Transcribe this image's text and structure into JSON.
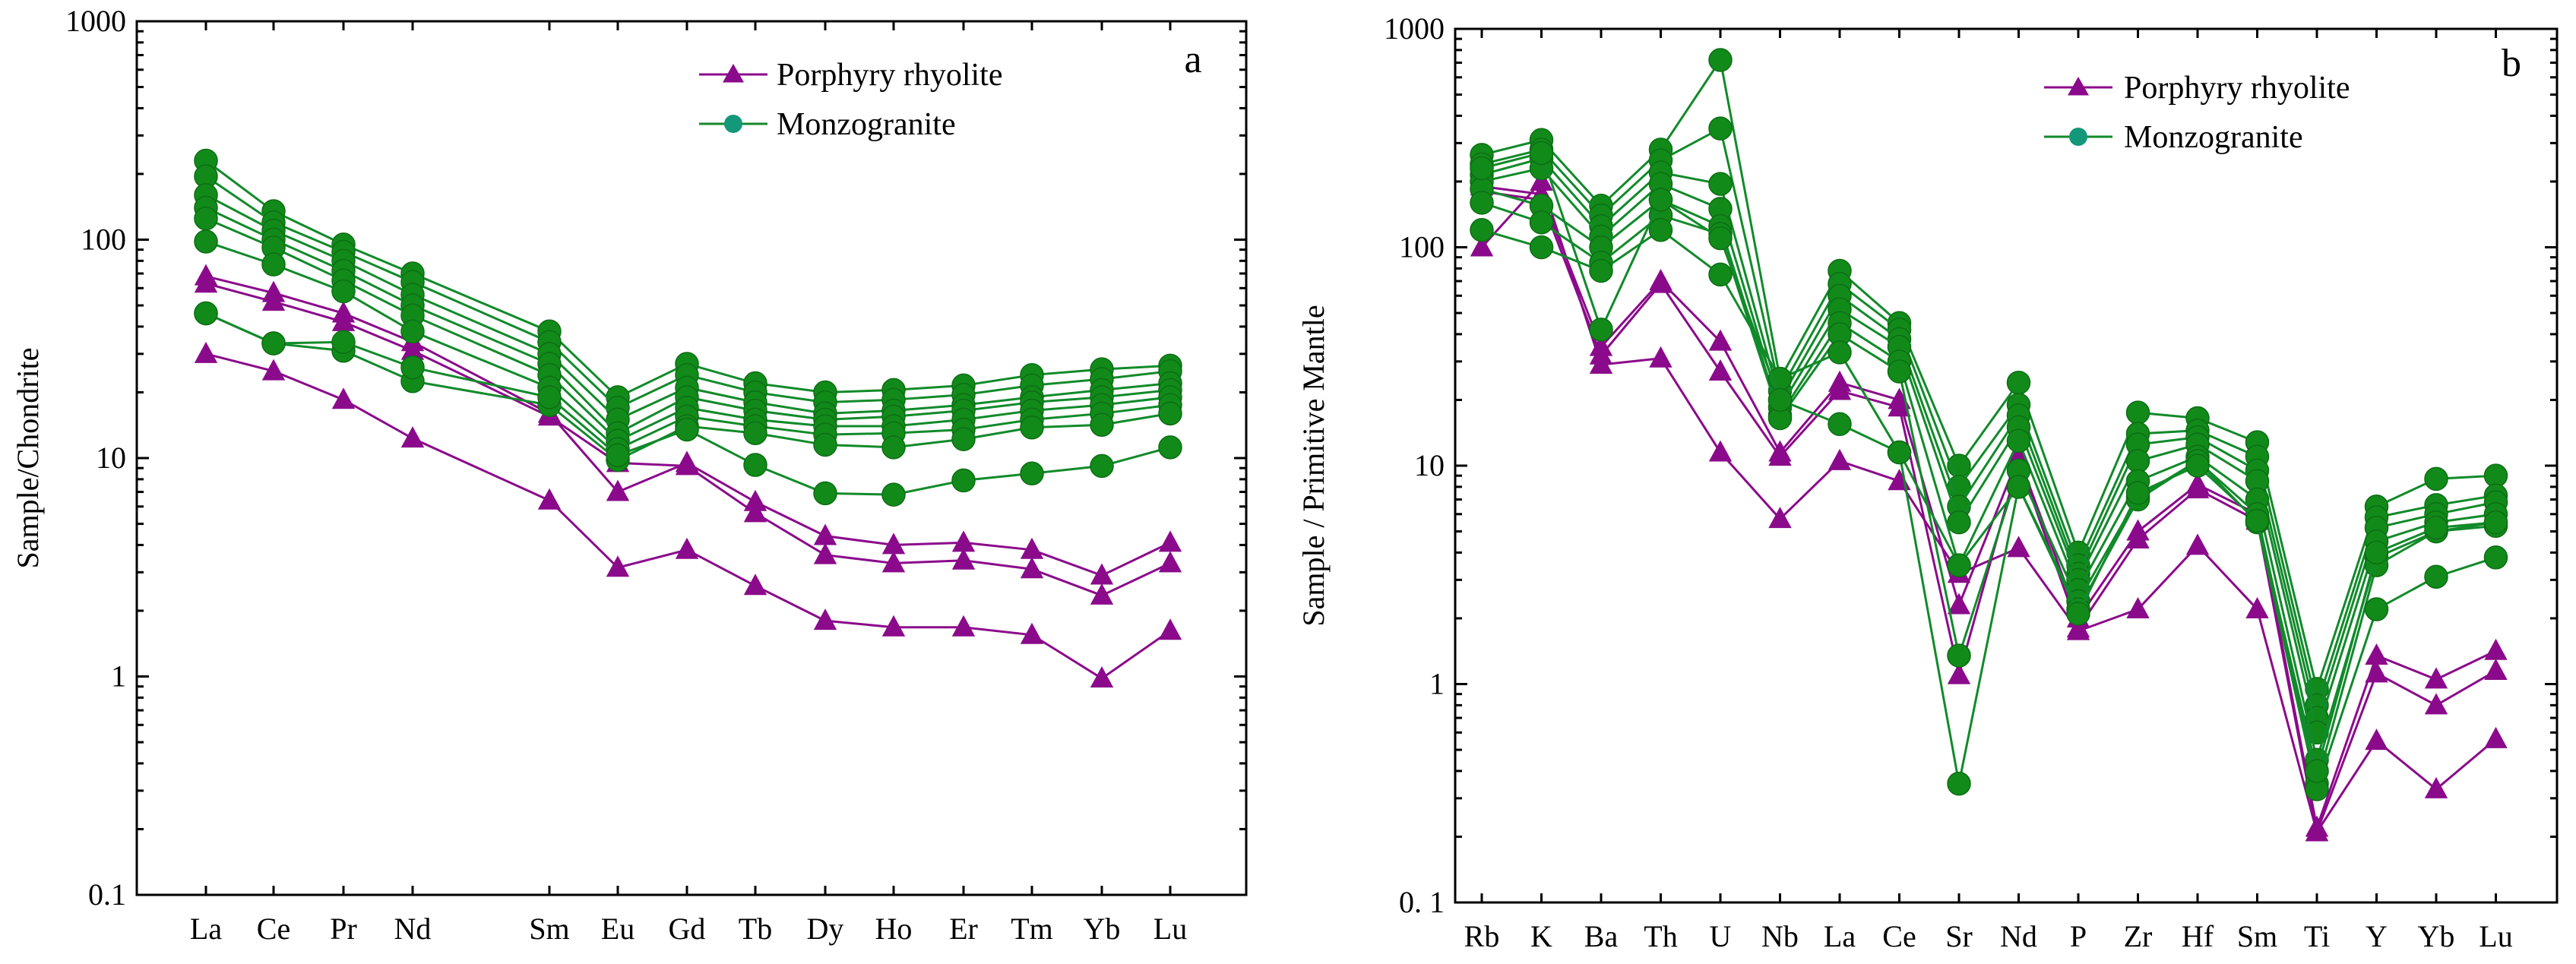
{
  "colors": {
    "porphyry": "#8b0a8b",
    "monzo_line": "#118a2a",
    "monzo_marker": "#118a1a",
    "legend_monzo_marker": "#13987a"
  },
  "chart_data": [
    {
      "type": "line",
      "panel_label": "a",
      "ylabel": "Sample/Chondrite",
      "xlabel": "",
      "yscale": "log",
      "ylim": [
        0.1,
        1000
      ],
      "ytick_labels": [
        "0.1",
        "1",
        "10",
        "100",
        "1000"
      ],
      "categories": [
        "La",
        "Ce",
        "Pr",
        "Nd",
        "Sm",
        "Eu",
        "Gd",
        "Tb",
        "Dy",
        "Ho",
        "Er",
        "Tm",
        "Yb",
        "Lu"
      ],
      "legend": [
        "Porphyry rhyolite",
        "Monzogranite"
      ],
      "series": [
        {
          "name": "Porphyry rhyolite",
          "values": [
            68,
            57,
            46,
            34,
            16,
            7,
            9.5,
            6.3,
            4.4,
            4.0,
            4.1,
            3.8,
            2.9,
            4.1
          ]
        },
        {
          "name": "Porphyry rhyolite",
          "values": [
            63,
            52,
            42,
            31,
            15.5,
            9.5,
            9.2,
            5.6,
            3.6,
            3.3,
            3.4,
            3.1,
            2.35,
            3.3
          ]
        },
        {
          "name": "Porphyry rhyolite",
          "values": [
            30,
            25,
            18.5,
            12.3,
            6.4,
            3.15,
            3.8,
            2.6,
            1.8,
            1.68,
            1.68,
            1.55,
            0.98,
            1.62
          ]
        },
        {
          "name": "Monzogranite",
          "values": [
            230,
            135,
            95,
            70,
            38,
            19,
            27,
            22,
            20,
            20.5,
            21.5,
            24,
            25.5,
            26.5
          ]
        },
        {
          "name": "Monzogranite",
          "values": [
            195,
            120,
            88,
            64,
            34,
            17,
            24,
            20,
            18,
            18.5,
            19.5,
            21.5,
            23,
            25
          ]
        },
        {
          "name": "Monzogranite",
          "values": [
            160,
            110,
            80,
            56,
            30,
            15,
            21,
            18,
            16,
            16.5,
            17.5,
            19,
            20.5,
            22
          ]
        },
        {
          "name": "Monzogranite",
          "values": [
            140,
            100,
            72,
            50,
            27,
            13,
            19,
            16.5,
            15,
            15.5,
            16.5,
            18,
            19,
            20.5
          ]
        },
        {
          "name": "Monzogranite",
          "values": [
            125,
            92,
            65,
            45,
            24,
            12,
            17,
            15,
            14,
            14,
            15,
            16.5,
            17.5,
            19
          ]
        },
        {
          "name": "Monzogranite",
          "values": [
            98,
            77,
            58,
            38,
            21,
            11,
            15.5,
            14,
            12.8,
            13,
            13.5,
            15,
            16,
            17.5
          ]
        },
        {
          "name": "Monzogranite",
          "values": [
            46,
            33.5,
            31,
            22.5,
            17.5,
            9.8,
            14,
            13,
            11.5,
            11.2,
            12.2,
            13.8,
            14.2,
            16
          ]
        },
        {
          "name": "Monzogranite",
          "values": [
            46,
            33.5,
            34,
            26,
            19,
            10.3,
            13.5,
            9.3,
            6.9,
            6.8,
            7.9,
            8.5,
            9.2,
            11.2
          ]
        }
      ]
    },
    {
      "type": "line",
      "panel_label": "b",
      "ylabel": "Sample / Primitive  Mantle",
      "xlabel": "",
      "yscale": "log",
      "ylim": [
        0.1,
        1000
      ],
      "ytick_labels": [
        "0. 1",
        "1",
        "10",
        "100",
        "1000"
      ],
      "categories": [
        "Rb",
        "K",
        "Ba",
        "Th",
        "U",
        "Nb",
        "La",
        "Ce",
        "Sr",
        "Nd",
        "P",
        "Zr",
        "Hf",
        "Sm",
        "Ti",
        "Y",
        "Yb",
        "Lu"
      ],
      "legend": [
        "Porphyry rhyolite",
        "Monzogranite"
      ],
      "series": [
        {
          "name": "Porphyry rhyolite",
          "values": [
            190,
            175,
            35,
            70,
            37,
            11.5,
            24,
            20,
            2.3,
            11,
            2.0,
            5.0,
            8.2,
            6.0,
            0.22,
            1.35,
            1.05,
            1.42
          ]
        },
        {
          "name": "Porphyry rhyolite",
          "values": [
            180,
            165,
            32,
            68,
            27,
            11.0,
            22,
            18.5,
            1.1,
            10.5,
            1.8,
            4.6,
            7.8,
            5.6,
            0.21,
            1.12,
            0.8,
            1.15
          ]
        },
        {
          "name": "Porphyry rhyolite",
          "values": [
            100,
            200,
            29,
            31,
            11.5,
            5.7,
            10.5,
            8.5,
            3.2,
            4.2,
            1.75,
            2.2,
            4.3,
            2.2,
            0.21,
            0.55,
            0.33,
            0.56
          ]
        },
        {
          "name": "Monzogranite",
          "values": [
            265,
            310,
            155,
            280,
            720,
            25,
            78,
            45,
            10,
            24,
            4.0,
            17.5,
            16.5,
            12.8,
            0.95,
            6.5,
            8.7,
            9.0
          ]
        },
        {
          "name": "Monzogranite",
          "values": [
            240,
            280,
            140,
            250,
            350,
            22,
            68,
            42,
            8.0,
            19,
            3.5,
            14,
            14.5,
            11,
            0.8,
            5.8,
            6.6,
            7.3
          ]
        },
        {
          "name": "Monzogranite",
          "values": [
            215,
            255,
            125,
            220,
            195,
            20,
            60,
            38,
            6.5,
            17,
            3.2,
            12.5,
            13.5,
            9.5,
            0.7,
            5.2,
            6.0,
            6.8
          ]
        },
        {
          "name": "Monzogranite",
          "values": [
            200,
            230,
            112,
            195,
            150,
            18.5,
            52,
            35,
            5.5,
            15,
            3.0,
            10.5,
            12.5,
            8.5,
            0.6,
            4.5,
            5.5,
            6.0
          ]
        },
        {
          "name": "Monzogranite",
          "values": [
            185,
            155,
            100,
            165,
            125,
            17,
            45,
            30,
            3.5,
            13,
            2.7,
            8.5,
            11,
            7.0,
            0.45,
            3.8,
            5.0,
            5.5
          ]
        },
        {
          "name": "Monzogranite",
          "values": [
            160,
            130,
            85,
            140,
            115,
            16.5,
            40,
            27,
            1.35,
            9.5,
            2.4,
            7.2,
            10.5,
            6.0,
            0.35,
            3.5,
            5.0,
            5.3
          ]
        },
        {
          "name": "Monzogranite",
          "values": [
            120,
            100,
            78,
            120,
            75,
            25,
            33,
            11.5,
            0.35,
            8.0,
            2.2,
            7.0,
            10.5,
            5.5,
            0.33,
            2.2,
            3.1,
            3.8
          ]
        },
        {
          "name": "Monzogranite",
          "values": [
            230,
            270,
            42,
            165,
            110,
            20,
            15.5,
            11.5,
            3.5,
            8.0,
            2.1,
            7.5,
            10,
            5.6,
            0.4,
            4.0,
            5.2,
            5.5
          ]
        }
      ]
    }
  ]
}
